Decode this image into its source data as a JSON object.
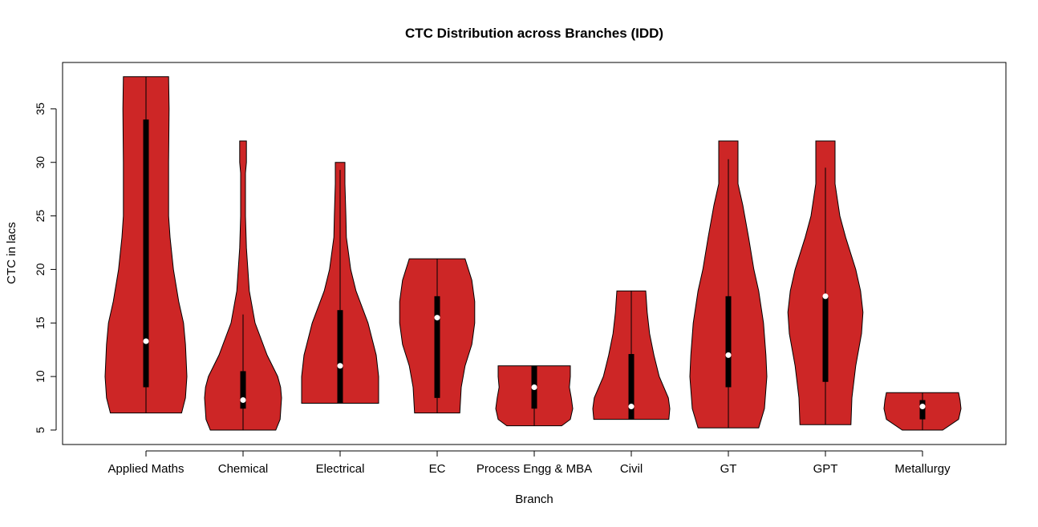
{
  "chart_data": {
    "type": "violin",
    "title": "CTC Distribution across Branches (IDD)",
    "xlabel": "Branch",
    "ylabel": "CTC in lacs",
    "ylim": [
      3.65,
      39.33
    ],
    "yticks": [
      5,
      10,
      15,
      20,
      25,
      30,
      35
    ],
    "grid": false,
    "fill_color": "#CD2626",
    "categories": [
      "Applied Maths",
      "Chemical",
      "Electrical",
      "EC",
      "Process Engg & MBA",
      "Civil",
      "GT",
      "GPT",
      "Metallurgy"
    ],
    "series": [
      {
        "min": 6.6,
        "max": 38,
        "q1": 9,
        "q3": 34,
        "median": 13.3,
        "whisker_low": 6.6,
        "whisker_high": 38,
        "density": [
          [
            6.6,
            0.74
          ],
          [
            8,
            0.82
          ],
          [
            10,
            0.85
          ],
          [
            13,
            0.82
          ],
          [
            15,
            0.78
          ],
          [
            17,
            0.68
          ],
          [
            20,
            0.57
          ],
          [
            23,
            0.5
          ],
          [
            25,
            0.47
          ],
          [
            30,
            0.47
          ],
          [
            35,
            0.48
          ],
          [
            38,
            0.47
          ]
        ]
      },
      {
        "min": 5,
        "max": 32,
        "q1": 7,
        "q3": 10.5,
        "median": 7.8,
        "whisker_low": 5,
        "whisker_high": 15.8,
        "density": [
          [
            5,
            0.68
          ],
          [
            6,
            0.77
          ],
          [
            8,
            0.8
          ],
          [
            9,
            0.78
          ],
          [
            10,
            0.72
          ],
          [
            12,
            0.5
          ],
          [
            15,
            0.25
          ],
          [
            18,
            0.13
          ],
          [
            20,
            0.1
          ],
          [
            22,
            0.07
          ],
          [
            25,
            0.05
          ],
          [
            29,
            0.05
          ],
          [
            30,
            0.07
          ],
          [
            32,
            0.07
          ]
        ]
      },
      {
        "min": 7.5,
        "max": 30,
        "q1": 7.5,
        "q3": 16.2,
        "median": 11,
        "whisker_low": 7.5,
        "whisker_high": 29.3,
        "density": [
          [
            7.5,
            0.8
          ],
          [
            10,
            0.8
          ],
          [
            12,
            0.75
          ],
          [
            15,
            0.58
          ],
          [
            18,
            0.33
          ],
          [
            20,
            0.22
          ],
          [
            23,
            0.13
          ],
          [
            25,
            0.12
          ],
          [
            28,
            0.1
          ],
          [
            30,
            0.1
          ]
        ]
      },
      {
        "min": 6.6,
        "max": 21,
        "q1": 8,
        "q3": 17.5,
        "median": 15.5,
        "whisker_low": 6.6,
        "whisker_high": 21,
        "density": [
          [
            6.6,
            0.47
          ],
          [
            9,
            0.5
          ],
          [
            11,
            0.58
          ],
          [
            13,
            0.72
          ],
          [
            15,
            0.78
          ],
          [
            17,
            0.78
          ],
          [
            19,
            0.72
          ],
          [
            21,
            0.58
          ]
        ]
      },
      {
        "min": 5.4,
        "max": 11,
        "q1": 7,
        "q3": 11,
        "median": 9,
        "whisker_low": 5.4,
        "whisker_high": 11,
        "density": [
          [
            5.4,
            0.57
          ],
          [
            6,
            0.75
          ],
          [
            7,
            0.8
          ],
          [
            8,
            0.77
          ],
          [
            9,
            0.73
          ],
          [
            10,
            0.75
          ],
          [
            11,
            0.75
          ]
        ]
      },
      {
        "min": 6,
        "max": 18,
        "q1": 6,
        "q3": 12.1,
        "median": 7.2,
        "whisker_low": 6,
        "whisker_high": 18,
        "density": [
          [
            6,
            0.78
          ],
          [
            7,
            0.8
          ],
          [
            8,
            0.77
          ],
          [
            10,
            0.58
          ],
          [
            12,
            0.47
          ],
          [
            14,
            0.38
          ],
          [
            16,
            0.33
          ],
          [
            18,
            0.3
          ]
        ]
      },
      {
        "min": 5.2,
        "max": 32,
        "q1": 9,
        "q3": 17.5,
        "median": 12,
        "whisker_low": 5.2,
        "whisker_high": 30.3,
        "density": [
          [
            5.2,
            0.63
          ],
          [
            7,
            0.75
          ],
          [
            10,
            0.8
          ],
          [
            12,
            0.78
          ],
          [
            15,
            0.73
          ],
          [
            18,
            0.63
          ],
          [
            20,
            0.53
          ],
          [
            23,
            0.42
          ],
          [
            26,
            0.3
          ],
          [
            28,
            0.2
          ],
          [
            30,
            0.2
          ],
          [
            32,
            0.2
          ]
        ]
      },
      {
        "min": 5.5,
        "max": 32,
        "q1": 9.5,
        "q3": 17.5,
        "median": 17.5,
        "whisker_low": 5.5,
        "whisker_high": 29.5,
        "density": [
          [
            5.5,
            0.53
          ],
          [
            8,
            0.55
          ],
          [
            11,
            0.63
          ],
          [
            14,
            0.75
          ],
          [
            16,
            0.78
          ],
          [
            18,
            0.73
          ],
          [
            20,
            0.63
          ],
          [
            23,
            0.42
          ],
          [
            25,
            0.3
          ],
          [
            28,
            0.2
          ],
          [
            30,
            0.2
          ],
          [
            32,
            0.2
          ]
        ]
      },
      {
        "min": 5,
        "max": 8.5,
        "q1": 6,
        "q3": 7.8,
        "median": 7.2,
        "whisker_low": 5,
        "whisker_high": 8.5,
        "density": [
          [
            5,
            0.42
          ],
          [
            6,
            0.75
          ],
          [
            7,
            0.8
          ],
          [
            7.8,
            0.78
          ],
          [
            8.5,
            0.75
          ]
        ]
      }
    ]
  }
}
